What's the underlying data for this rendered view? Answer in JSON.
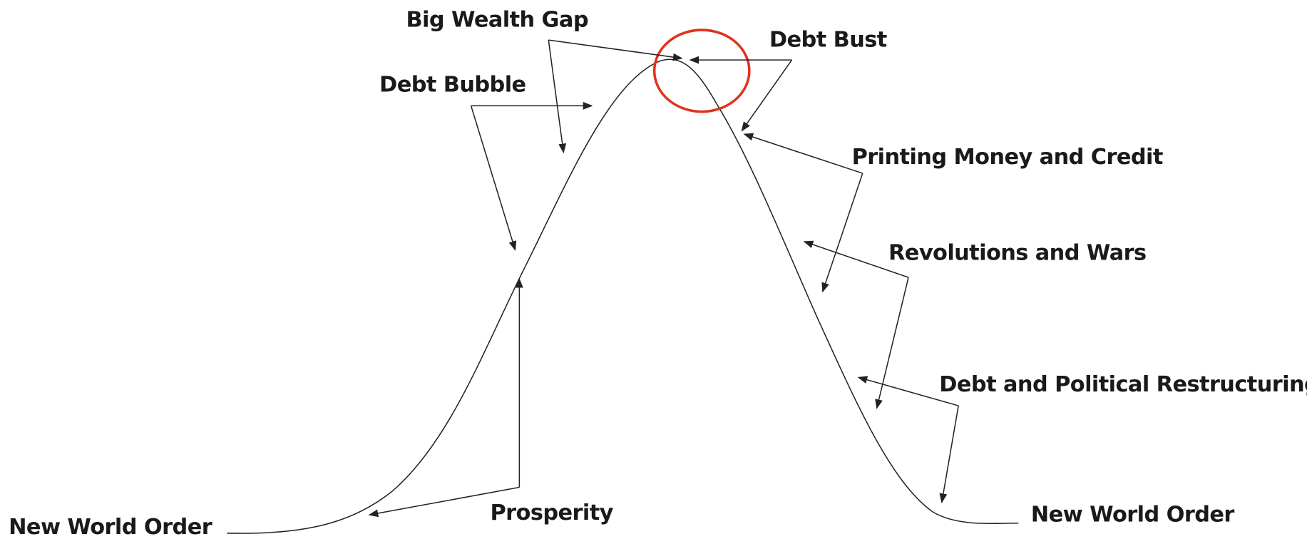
{
  "labels": {
    "big_wealth_gap": "Big Wealth Gap",
    "debt_bubble": "Debt Bubble",
    "debt_bust": "Debt Bust",
    "printing_money": "Printing Money and Credit",
    "revolutions": "Revolutions and Wars",
    "restructuring": "Debt and Political Restructuring",
    "prosperity": "Prosperity",
    "new_world_order_left": "New World Order",
    "new_world_order_right": "New World Order"
  }
}
